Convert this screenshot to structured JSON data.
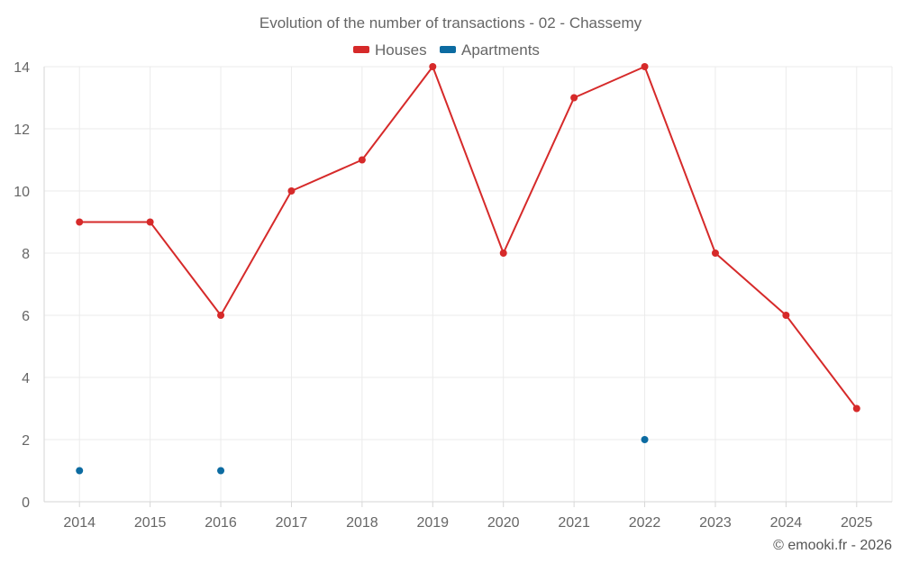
{
  "chart_data": {
    "type": "line",
    "title": "Evolution of the number of transactions - 02 - Chassemy",
    "categories": [
      "2014",
      "2015",
      "2016",
      "2017",
      "2018",
      "2019",
      "2020",
      "2021",
      "2022",
      "2023",
      "2024",
      "2025"
    ],
    "ylim": [
      0,
      14
    ],
    "yticks": [
      0,
      2,
      4,
      6,
      8,
      10,
      12,
      14
    ],
    "ytick_labels": [
      "0",
      "2",
      "4",
      "6",
      "8",
      "10",
      "12",
      "14"
    ],
    "grid": true,
    "legend_position": "top-center",
    "series": [
      {
        "name": "Houses",
        "color": "#d62a2a",
        "values": [
          9,
          9,
          6,
          10,
          11,
          14,
          8,
          13,
          14,
          8,
          6,
          3
        ]
      },
      {
        "name": "Apartments",
        "color": "#0c6ba1",
        "values": [
          1,
          null,
          1,
          null,
          null,
          null,
          null,
          null,
          2,
          null,
          null,
          null
        ]
      }
    ],
    "credit": "© emooki.fr - 2026"
  }
}
